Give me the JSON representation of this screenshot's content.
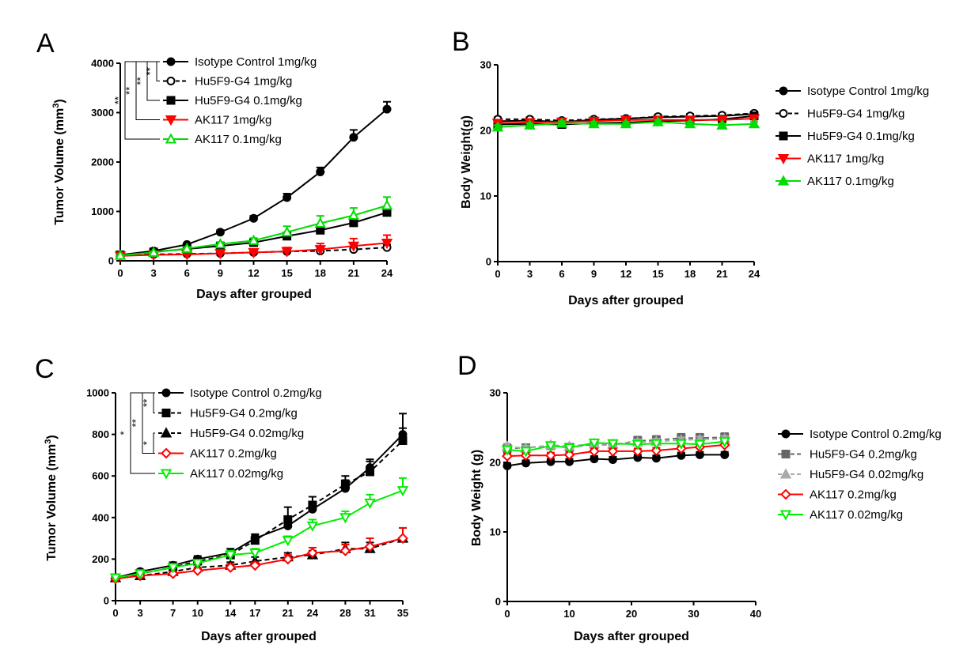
{
  "chart_data": [
    {
      "panel": "A",
      "type": "line",
      "xlabel": "Days after grouped",
      "ylabel": "Tumor Volume (mm3)",
      "ylabel_main": "Tumor Volume (mm",
      "ylabel_sup": "3",
      "ylabel_end": ")",
      "x": [
        0,
        3,
        6,
        9,
        12,
        15,
        18,
        21,
        24
      ],
      "xlim": [
        0,
        24
      ],
      "ylim": [
        0,
        4000
      ],
      "yticks": [
        0,
        1000,
        2000,
        3000,
        4000
      ],
      "legend_position": "top-right of plot",
      "series": [
        {
          "name": "Isotype Control 1mg/kg",
          "color": "#000000",
          "marker": "circle",
          "dash": false,
          "values": [
            120,
            200,
            330,
            580,
            860,
            1280,
            1800,
            2500,
            3070
          ],
          "errors": [
            10,
            20,
            25,
            40,
            50,
            80,
            90,
            150,
            150
          ]
        },
        {
          "name": "Hu5F9-G4 1mg/kg",
          "color": "#000000",
          "marker": "circle-open",
          "dash": true,
          "values": [
            110,
            130,
            140,
            150,
            170,
            190,
            200,
            230,
            270
          ],
          "errors": [
            10,
            15,
            15,
            20,
            25,
            30,
            40,
            50,
            60
          ]
        },
        {
          "name": "Hu5F9-G4 0.1mg/kg",
          "color": "#000000",
          "marker": "square",
          "dash": false,
          "values": [
            120,
            180,
            240,
            300,
            370,
            500,
            620,
            770,
            980
          ],
          "errors": [
            10,
            20,
            25,
            30,
            40,
            60,
            70,
            90,
            100
          ]
        },
        {
          "name": "AK117 1mg/kg",
          "color": "#ff0000",
          "marker": "triangle-down",
          "dash": false,
          "values": [
            100,
            120,
            130,
            150,
            170,
            190,
            230,
            300,
            360
          ],
          "errors": [
            10,
            15,
            20,
            25,
            40,
            80,
            120,
            150,
            160
          ]
        },
        {
          "name": "AK117 0.1mg/kg",
          "color": "#00dd00",
          "marker": "triangle-up-open",
          "dash": false,
          "values": [
            110,
            170,
            250,
            340,
            410,
            580,
            760,
            920,
            1120
          ],
          "errors": [
            10,
            20,
            30,
            40,
            50,
            120,
            150,
            150,
            170
          ]
        }
      ],
      "significance": [
        "**",
        "**",
        "**",
        "**"
      ]
    },
    {
      "panel": "B",
      "type": "line",
      "xlabel": "Days after grouped",
      "ylabel": "Body Weight(g)",
      "x": [
        0,
        3,
        6,
        9,
        12,
        15,
        18,
        21,
        24
      ],
      "xlim": [
        0,
        24
      ],
      "ylim": [
        0,
        30
      ],
      "yticks": [
        0,
        10,
        20,
        30
      ],
      "legend_position": "right",
      "series": [
        {
          "name": "Isotype Control 1mg/kg",
          "color": "#000000",
          "marker": "circle",
          "dash": false,
          "values": [
            21.4,
            21.5,
            21.3,
            21.6,
            21.8,
            22.0,
            22.1,
            22.2,
            22.5
          ],
          "errors": [
            0.3,
            0.3,
            0.3,
            0.3,
            0.3,
            0.3,
            0.3,
            0.3,
            0.3
          ]
        },
        {
          "name": "Hu5F9-G4 1mg/kg",
          "color": "#000000",
          "marker": "circle-open",
          "dash": true,
          "values": [
            21.7,
            21.7,
            21.5,
            21.7,
            21.8,
            22.1,
            22.2,
            22.3,
            22.6
          ],
          "errors": [
            0.3,
            0.3,
            0.3,
            0.3,
            0.3,
            0.3,
            0.3,
            0.3,
            0.3
          ]
        },
        {
          "name": "Hu5F9-G4 0.1mg/kg",
          "color": "#000000",
          "marker": "square",
          "dash": false,
          "values": [
            20.9,
            21.0,
            20.9,
            21.1,
            21.2,
            21.4,
            21.5,
            21.7,
            22.2
          ],
          "errors": [
            0.3,
            0.3,
            0.3,
            0.3,
            0.3,
            0.3,
            0.3,
            0.3,
            0.3
          ]
        },
        {
          "name": "AK117 1mg/kg",
          "color": "#ff0000",
          "marker": "triangle-down",
          "dash": false,
          "values": [
            21.1,
            21.2,
            21.3,
            21.4,
            21.6,
            21.6,
            21.6,
            21.6,
            21.8
          ],
          "errors": [
            0.3,
            0.3,
            0.3,
            0.3,
            0.3,
            0.3,
            0.3,
            0.3,
            0.3
          ]
        },
        {
          "name": "AK117 0.1mg/kg",
          "color": "#00dd00",
          "marker": "triangle-up",
          "dash": false,
          "values": [
            20.5,
            20.8,
            21.1,
            21.0,
            21.0,
            21.3,
            21.0,
            20.8,
            21.0
          ],
          "errors": [
            0.3,
            0.3,
            0.3,
            0.3,
            0.3,
            0.3,
            0.3,
            0.3,
            0.3
          ]
        }
      ]
    },
    {
      "panel": "C",
      "type": "line",
      "xlabel": "Days after grouped",
      "ylabel": "Tumor Volume (mm3)",
      "ylabel_main": "Tumor Volume (mm",
      "ylabel_sup": "3",
      "ylabel_end": ")",
      "x": [
        0,
        3,
        7,
        10,
        14,
        17,
        21,
        24,
        28,
        31,
        35
      ],
      "xlim": [
        0,
        35
      ],
      "ylim": [
        0,
        1000
      ],
      "yticks": [
        0,
        200,
        400,
        600,
        800,
        1000
      ],
      "legend_position": "top-right of plot",
      "series": [
        {
          "name": "Isotype Control 0.2mg/kg",
          "color": "#000000",
          "marker": "circle",
          "dash": false,
          "values": [
            110,
            140,
            170,
            200,
            230,
            300,
            360,
            440,
            540,
            640,
            800
          ],
          "errors": [
            10,
            10,
            15,
            15,
            20,
            20,
            30,
            30,
            40,
            40,
            100
          ]
        },
        {
          "name": "Hu5F9-G4 0.2mg/kg",
          "color": "#000000",
          "marker": "square",
          "dash": true,
          "values": [
            110,
            130,
            160,
            190,
            220,
            290,
            390,
            460,
            560,
            620,
            770
          ],
          "errors": [
            10,
            10,
            15,
            15,
            20,
            25,
            60,
            40,
            40,
            50,
            60
          ]
        },
        {
          "name": "Hu5F9-G4 0.02mg/kg",
          "color": "#000000",
          "marker": "triangle-up",
          "dash": true,
          "values": [
            110,
            120,
            140,
            160,
            170,
            190,
            210,
            220,
            250,
            250,
            300
          ],
          "errors": [
            10,
            10,
            10,
            15,
            15,
            20,
            20,
            20,
            30,
            30,
            50
          ]
        },
        {
          "name": "AK117 0.2mg/kg",
          "color": "#ff0000",
          "marker": "diamond-open",
          "dash": false,
          "values": [
            105,
            120,
            130,
            145,
            160,
            170,
            200,
            230,
            240,
            260,
            300
          ],
          "errors": [
            10,
            10,
            10,
            15,
            15,
            15,
            20,
            25,
            30,
            40,
            50
          ]
        },
        {
          "name": "AK117 0.02mg/kg",
          "color": "#00ee00",
          "marker": "triangle-down-open",
          "dash": false,
          "values": [
            110,
            130,
            160,
            180,
            220,
            230,
            290,
            360,
            400,
            470,
            530
          ],
          "errors": [
            10,
            10,
            15,
            15,
            20,
            20,
            20,
            30,
            30,
            40,
            60
          ]
        }
      ],
      "significance": [
        "**",
        "**",
        "*",
        "*"
      ]
    },
    {
      "panel": "D",
      "type": "line",
      "xlabel": "Days after grouped",
      "ylabel": "Body Weight (g)",
      "x": [
        0,
        3,
        7,
        10,
        14,
        17,
        21,
        24,
        28,
        31,
        35
      ],
      "xlim": [
        0,
        40
      ],
      "xticks": [
        0,
        10,
        20,
        30,
        40
      ],
      "ylim": [
        0,
        30
      ],
      "yticks": [
        0,
        10,
        20,
        30
      ],
      "legend_position": "right",
      "series": [
        {
          "name": "Isotype Control 0.2mg/kg",
          "color": "#000000",
          "marker": "circle",
          "dash": false,
          "values": [
            19.5,
            19.9,
            20.1,
            20.1,
            20.5,
            20.4,
            20.7,
            20.6,
            21.0,
            21.1,
            21.1
          ],
          "errors": [
            0.4,
            0.4,
            0.4,
            0.4,
            0.4,
            0.4,
            0.4,
            0.4,
            0.4,
            0.4,
            0.4
          ]
        },
        {
          "name": "Hu5F9-G4 0.2mg/kg",
          "color": "#666666",
          "marker": "square",
          "dash": true,
          "values": [
            22.0,
            22.1,
            22.4,
            22.2,
            22.6,
            22.5,
            23.1,
            23.2,
            23.5,
            23.5,
            23.6
          ],
          "errors": [
            0.4,
            0.4,
            0.4,
            0.4,
            0.4,
            0.4,
            0.6,
            0.6,
            0.6,
            0.6,
            0.6
          ]
        },
        {
          "name": "Hu5F9-G4 0.02mg/kg",
          "color": "#aaaaaa",
          "marker": "triangle-up",
          "dash": true,
          "values": [
            22.3,
            22.0,
            22.5,
            22.3,
            22.7,
            22.6,
            22.9,
            23.0,
            23.2,
            23.3,
            23.4
          ],
          "errors": [
            0.4,
            0.4,
            0.4,
            0.4,
            0.4,
            0.4,
            0.4,
            0.4,
            0.4,
            0.4,
            0.4
          ]
        },
        {
          "name": "AK117 0.2mg/kg",
          "color": "#ff0000",
          "marker": "diamond-open",
          "dash": false,
          "values": [
            20.9,
            21.0,
            21.0,
            21.1,
            21.6,
            21.6,
            21.6,
            21.7,
            22.0,
            22.2,
            22.5
          ],
          "errors": [
            0.4,
            0.4,
            0.4,
            0.4,
            0.4,
            0.4,
            0.4,
            0.4,
            0.4,
            0.4,
            0.4
          ]
        },
        {
          "name": "AK117 0.02mg/kg",
          "color": "#00ee00",
          "marker": "triangle-down-open",
          "dash": false,
          "values": [
            21.8,
            21.6,
            22.4,
            22.1,
            22.8,
            22.7,
            22.6,
            22.7,
            22.7,
            22.6,
            23.0
          ],
          "errors": [
            0.4,
            0.4,
            0.4,
            0.4,
            0.4,
            0.4,
            0.4,
            0.4,
            0.4,
            0.4,
            0.4
          ]
        }
      ]
    }
  ]
}
